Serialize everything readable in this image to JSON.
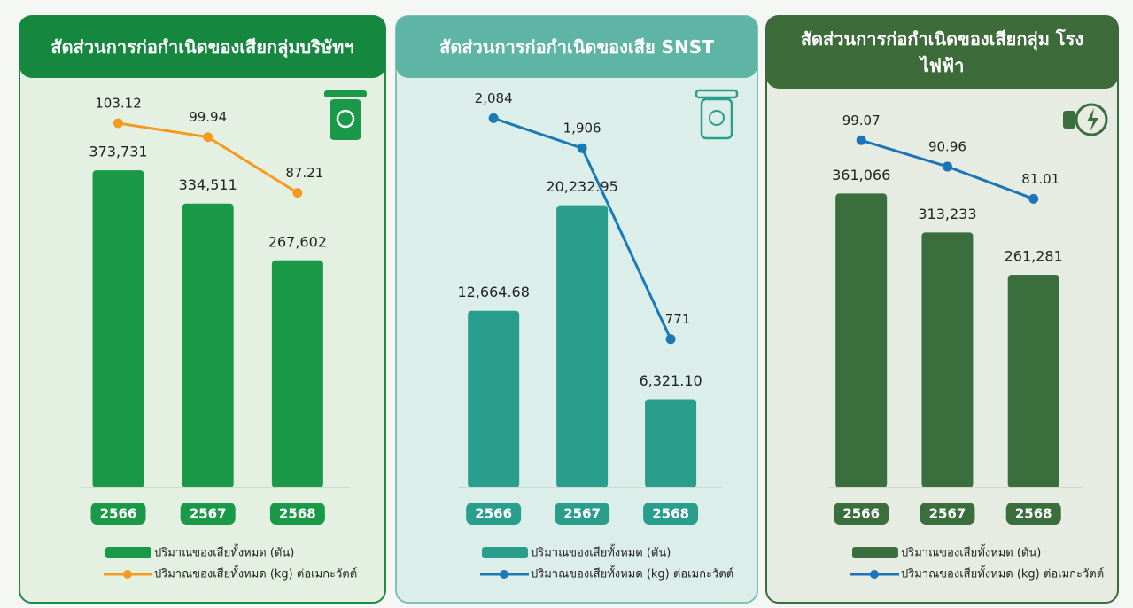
{
  "chart_data": [
    {
      "type": "bar",
      "title": "สัดส่วนการก่อกำเนิดของเสียกลุ่มบริษัทฯ",
      "categories": [
        "2566",
        "2567",
        "2568"
      ],
      "series": [
        {
          "name": "ปริมาณของเสียทั้งหมด (ตัน)",
          "color": "#1a9a48",
          "values": [
            373731,
            334511,
            267602
          ],
          "value_labels": [
            "373,731",
            "334,511",
            "267,602"
          ]
        },
        {
          "name": "ปริมาณของเสียทั้งหมด (kg) ต่อเมกะวัตต์",
          "color": "#f39c1f",
          "axis": "y2",
          "values": [
            103.12,
            99.94,
            87.21
          ]
        }
      ],
      "ylim": [
        0,
        470000
      ],
      "y2lim": [
        20,
        111
      ]
    },
    {
      "type": "bar",
      "title": "สัดส่วนการก่อกำเนิดของเสีย SNST",
      "categories": [
        "2566",
        "2567",
        "2568"
      ],
      "series": [
        {
          "name": "ปริมาณของเสียทั้งหมด (ตัน)",
          "color": "#2a9e8c",
          "values": [
            12664.68,
            20232.95,
            6321.1
          ],
          "value_labels": [
            "12,664.68",
            "20,232.95",
            "6,321.10"
          ]
        },
        {
          "name": "ปริมาณของเสียทั้งหมด (kg) ต่อเมกะวัตต์",
          "color": "#1a7ab5",
          "axis": "y2",
          "values": [
            2084,
            1906,
            771
          ],
          "value_labels": [
            "2,084",
            "1,906",
            "771"
          ]
        }
      ],
      "ylim": [
        0,
        28600
      ],
      "y2lim": [
        -110,
        2260
      ]
    },
    {
      "type": "bar",
      "title": "สัดส่วนการก่อกำเนิดของเสียกลุ่ม โรงไฟฟ้า",
      "categories": [
        "2566",
        "2567",
        "2568"
      ],
      "series": [
        {
          "name": "ปริมาณของเสียทั้งหมด (ตัน)",
          "color": "#3a6e3c",
          "values": [
            361066,
            313233,
            261281
          ],
          "value_labels": [
            "361,066",
            "313,233",
            "261,281"
          ]
        },
        {
          "name": "ปริมาณของเสียทั้งหมด (kg) ต่อเมกะวัตต์",
          "color": "#1b75b8",
          "axis": "y2",
          "values": [
            99.07,
            90.96,
            81.01
          ]
        }
      ],
      "ylim": [
        0,
        490000
      ],
      "y2lim": [
        -8,
        115
      ]
    }
  ]
}
